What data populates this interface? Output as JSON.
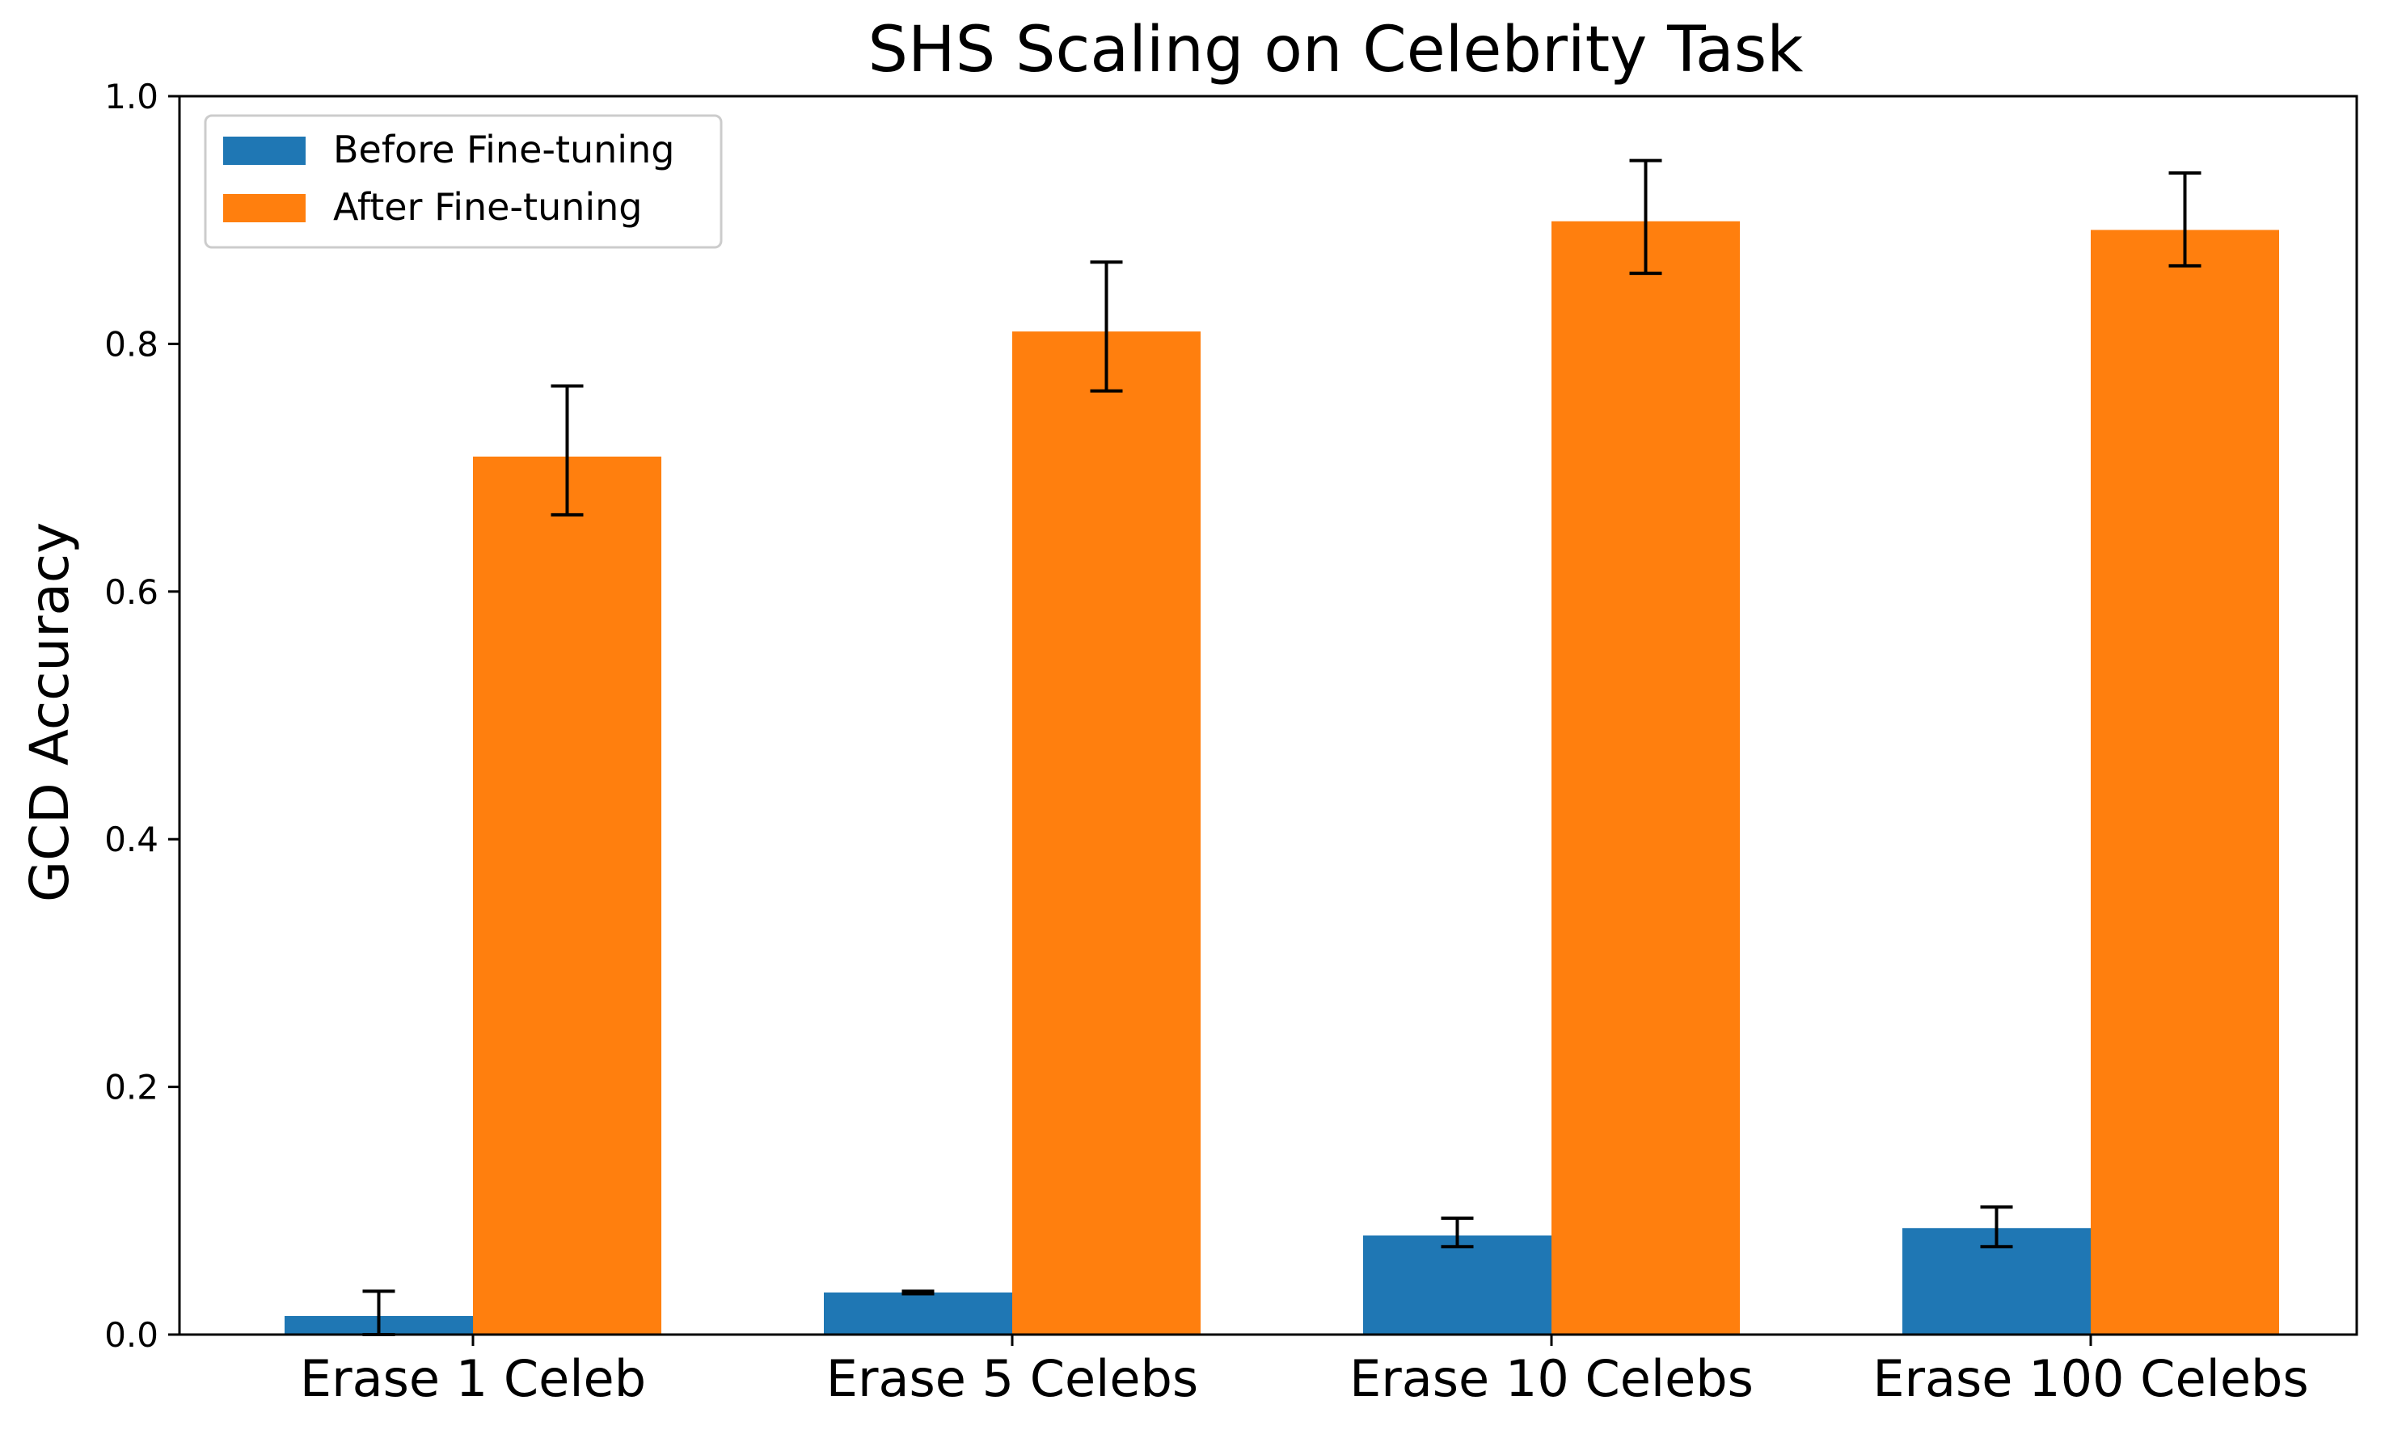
{
  "chart_data": {
    "type": "bar",
    "title": "SHS Scaling on Celebrity Task",
    "xlabel": "",
    "ylabel": "GCD Accuracy",
    "ylim": [
      0,
      1.0
    ],
    "yticks": [
      "0.0",
      "0.2",
      "0.4",
      "0.6",
      "0.8",
      "1.0"
    ],
    "categories": [
      "Erase 1 Celeb",
      "Erase 5 Celebs",
      "Erase 10 Celebs",
      "Erase 100 Celebs"
    ],
    "legend_position": "top-left",
    "grid": false,
    "series": [
      {
        "name": "Before Fine-tuning",
        "color": "#1f77b4",
        "values": [
          0.015,
          0.034,
          0.08,
          0.086
        ],
        "err_low": [
          0.0,
          0.033,
          0.071,
          0.071
        ],
        "err_high": [
          0.035,
          0.035,
          0.094,
          0.103
        ]
      },
      {
        "name": "After Fine-tuning",
        "color": "#ff7f0e",
        "values": [
          0.709,
          0.81,
          0.899,
          0.892
        ],
        "err_low": [
          0.662,
          0.762,
          0.857,
          0.863
        ],
        "err_high": [
          0.766,
          0.866,
          0.948,
          0.938
        ]
      }
    ]
  }
}
